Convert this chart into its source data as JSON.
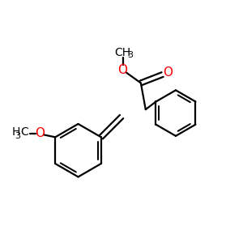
{
  "background": "#ffffff",
  "bond_color": "#000000",
  "oxygen_color": "#ff0000",
  "line_width": 1.6,
  "figsize": [
    3.0,
    3.0
  ],
  "dpi": 100,
  "xlim": [
    0,
    10
  ],
  "ylim": [
    0,
    10
  ]
}
